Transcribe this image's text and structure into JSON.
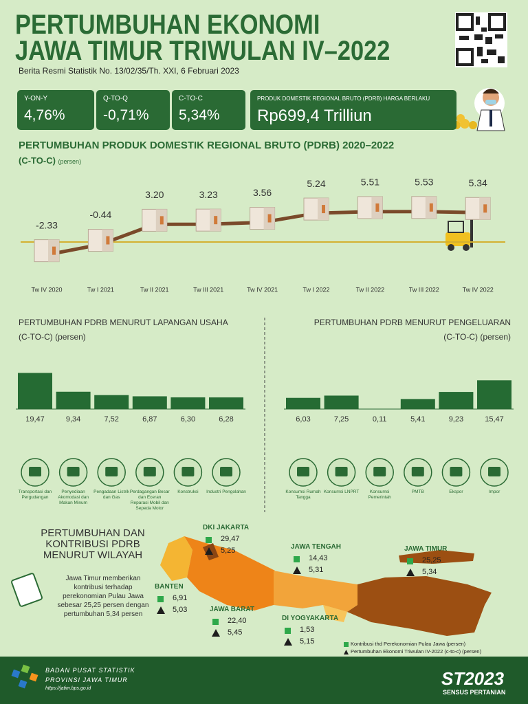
{
  "header": {
    "title_line1": "PERTUMBUHAN EKONOMI",
    "title_line2": "JAWA TIMUR TRIWULAN IV–2022",
    "subtitle": "Berita Resmi Statistik No. 13/02/35/Th. XXI, 6 Februari 2023"
  },
  "indicators": [
    {
      "label": "Y-ON-Y",
      "value": "4,76%"
    },
    {
      "label": "Q-TO-Q",
      "value": "-0,71%"
    },
    {
      "label": "C-TO-C",
      "value": "5,34%"
    },
    {
      "label": "PRODUK DOMESTIK REGIONAL BRUTO (PDRB) HARGA BERLAKU",
      "value": "Rp699,4 Trilliun"
    }
  ],
  "chart_data": [
    {
      "type": "line",
      "title": "PERTUMBUHAN PRODUK DOMESTIK REGIONAL BRUTO (PDRB) 2020–2022",
      "subtitle": "(C-TO-C)",
      "unit": "(persen)",
      "categories": [
        "Tw IV 2020",
        "Tw I 2021",
        "Tw II 2021",
        "Tw III 2021",
        "Tw IV 2021",
        "Tw I 2022",
        "Tw II 2022",
        "Tw III 2022",
        "Tw IV 2022"
      ],
      "values": [
        -2.33,
        -0.44,
        3.2,
        3.23,
        3.56,
        5.24,
        5.51,
        5.53,
        5.34
      ],
      "value_labels": [
        "-2.33",
        "-0.44",
        "3.20",
        "3.23",
        "3.56",
        "5.24",
        "5.51",
        "5.53",
        "5.34"
      ],
      "color": "#7a4a2a"
    },
    {
      "type": "bar",
      "title": "PERTUMBUHAN PDRB MENURUT LAPANGAN USAHA",
      "subtitle": "(C-TO-C) (persen)",
      "categories": [
        "Transportasi dan Pergudangan",
        "Penyediaan Akomodasi dan Makan Minum",
        "Pengadaan Listrik dan Gas",
        "Perdagangan Besar dan Eceran Reparasi Mobil dan Sepeda Motor",
        "Konstruksi",
        "Industri Pengolahan"
      ],
      "values": [
        19.47,
        9.34,
        7.52,
        6.87,
        6.3,
        6.28
      ],
      "value_labels": [
        "19,47",
        "9,34",
        "7,52",
        "6,87",
        "6,30",
        "6,28"
      ],
      "color": "#256b33"
    },
    {
      "type": "bar",
      "title": "PERTUMBUHAN PDRB MENURUT PENGELUARAN",
      "subtitle": "(C-TO-C) (persen)",
      "categories": [
        "Konsumsi Rumah Tangga",
        "Konsumsi LNPRT",
        "Konsumsi Pemerintah",
        "PMTB",
        "Ekspor",
        "Impor"
      ],
      "values": [
        6.03,
        7.25,
        0.11,
        5.41,
        9.23,
        15.47
      ],
      "value_labels": [
        "6,03",
        "7,25",
        "0,11",
        "5,41",
        "9,23",
        "15,47"
      ],
      "color": "#256b33"
    }
  ],
  "map": {
    "title": "PERTUMBUHAN DAN KONTRIBUSI PDRB MENURUT WILAYAH",
    "note": "Jawa Timur memberikan kontribusi terhadap perekonomian Pulau Jawa sebesar 25,25 persen dengan pertumbuhan 5,34 persen",
    "regions": [
      {
        "name": "DKI JAKARTA",
        "contribution": "29,47",
        "growth": "5,25"
      },
      {
        "name": "JAWA TENGAH",
        "contribution": "14,43",
        "growth": "5,31"
      },
      {
        "name": "JAWA TIMUR",
        "contribution": "25,25",
        "growth": "5,34"
      },
      {
        "name": "BANTEN",
        "contribution": "6,91",
        "growth": "5,03"
      },
      {
        "name": "JAWA BARAT",
        "contribution": "22,40",
        "growth": "5,45"
      },
      {
        "name": "DI YOGYAKARTA",
        "contribution": "1,53",
        "growth": "5,15"
      }
    ],
    "legend": {
      "contribution": "Kontribusi thd Perekonomian Pulau Jawa (persen)",
      "growth": "Pertumbuhan Ekonomi Triwulan IV-2022 (c-to-c) (persen)"
    }
  },
  "footer": {
    "org": "BADAN PUSAT STATISTIK",
    "province": "PROVINSI JAWA TIMUR",
    "url": "https://jatim.bps.go.id",
    "census": "ST2023",
    "census_name": "SENSUS PERTANIAN"
  }
}
